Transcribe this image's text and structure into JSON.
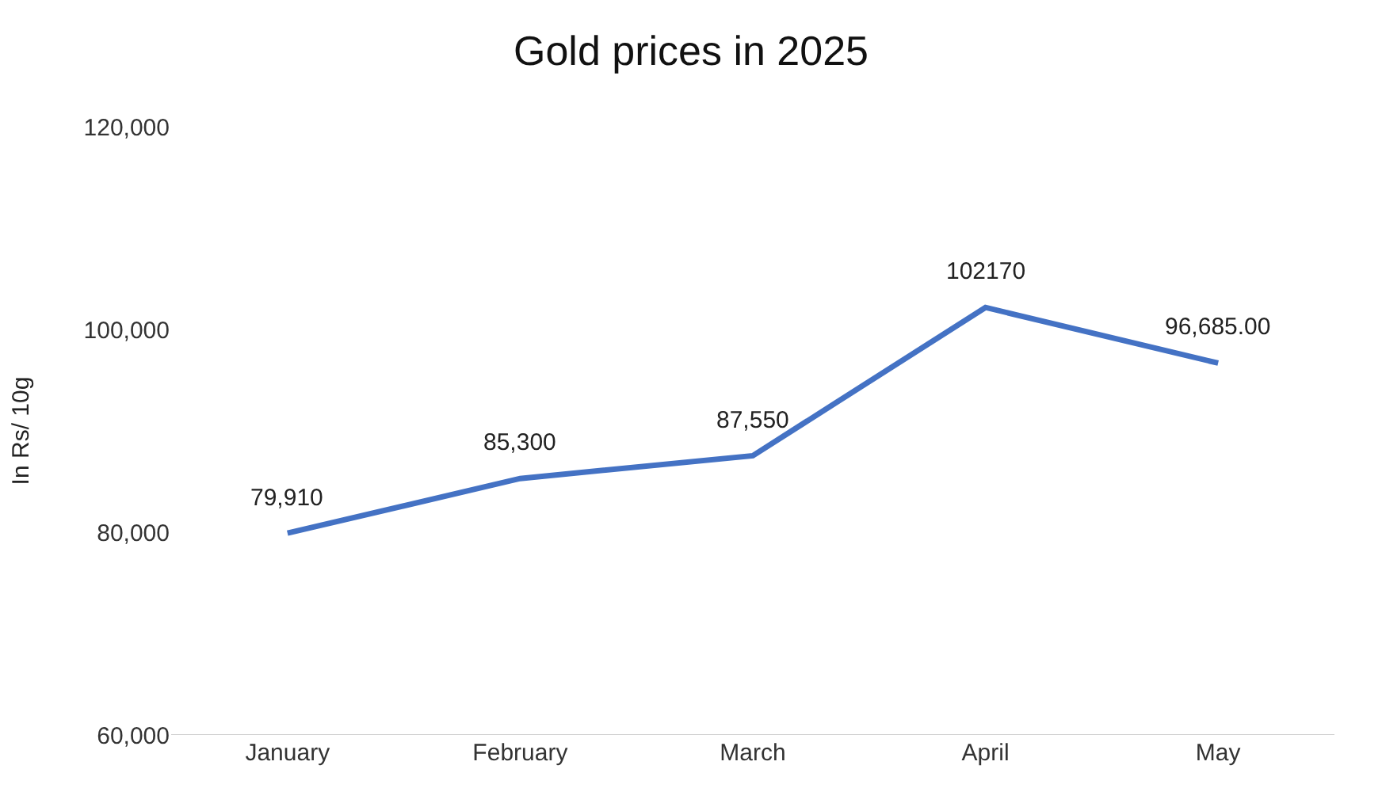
{
  "chart_data": {
    "type": "line",
    "title": "Gold prices in 2025",
    "ylabel": "In Rs/ 10g",
    "categories": [
      "January",
      "February",
      "March",
      "April",
      "May"
    ],
    "series": [
      {
        "color": "#4472c4",
        "values": [
          79910,
          85300,
          87550,
          102170,
          96685
        ],
        "value_labels": [
          "79,910",
          "85,300",
          "87,550",
          "102170",
          "96,685.00"
        ]
      }
    ],
    "ylim": [
      60000,
      120000
    ],
    "yticks": [
      {
        "value": 60000,
        "label": "60,000"
      },
      {
        "value": 80000,
        "label": "80,000"
      },
      {
        "value": 100000,
        "label": "100,000"
      },
      {
        "value": 120000,
        "label": "120,000"
      }
    ],
    "marker": "none",
    "line_style": "solid"
  }
}
